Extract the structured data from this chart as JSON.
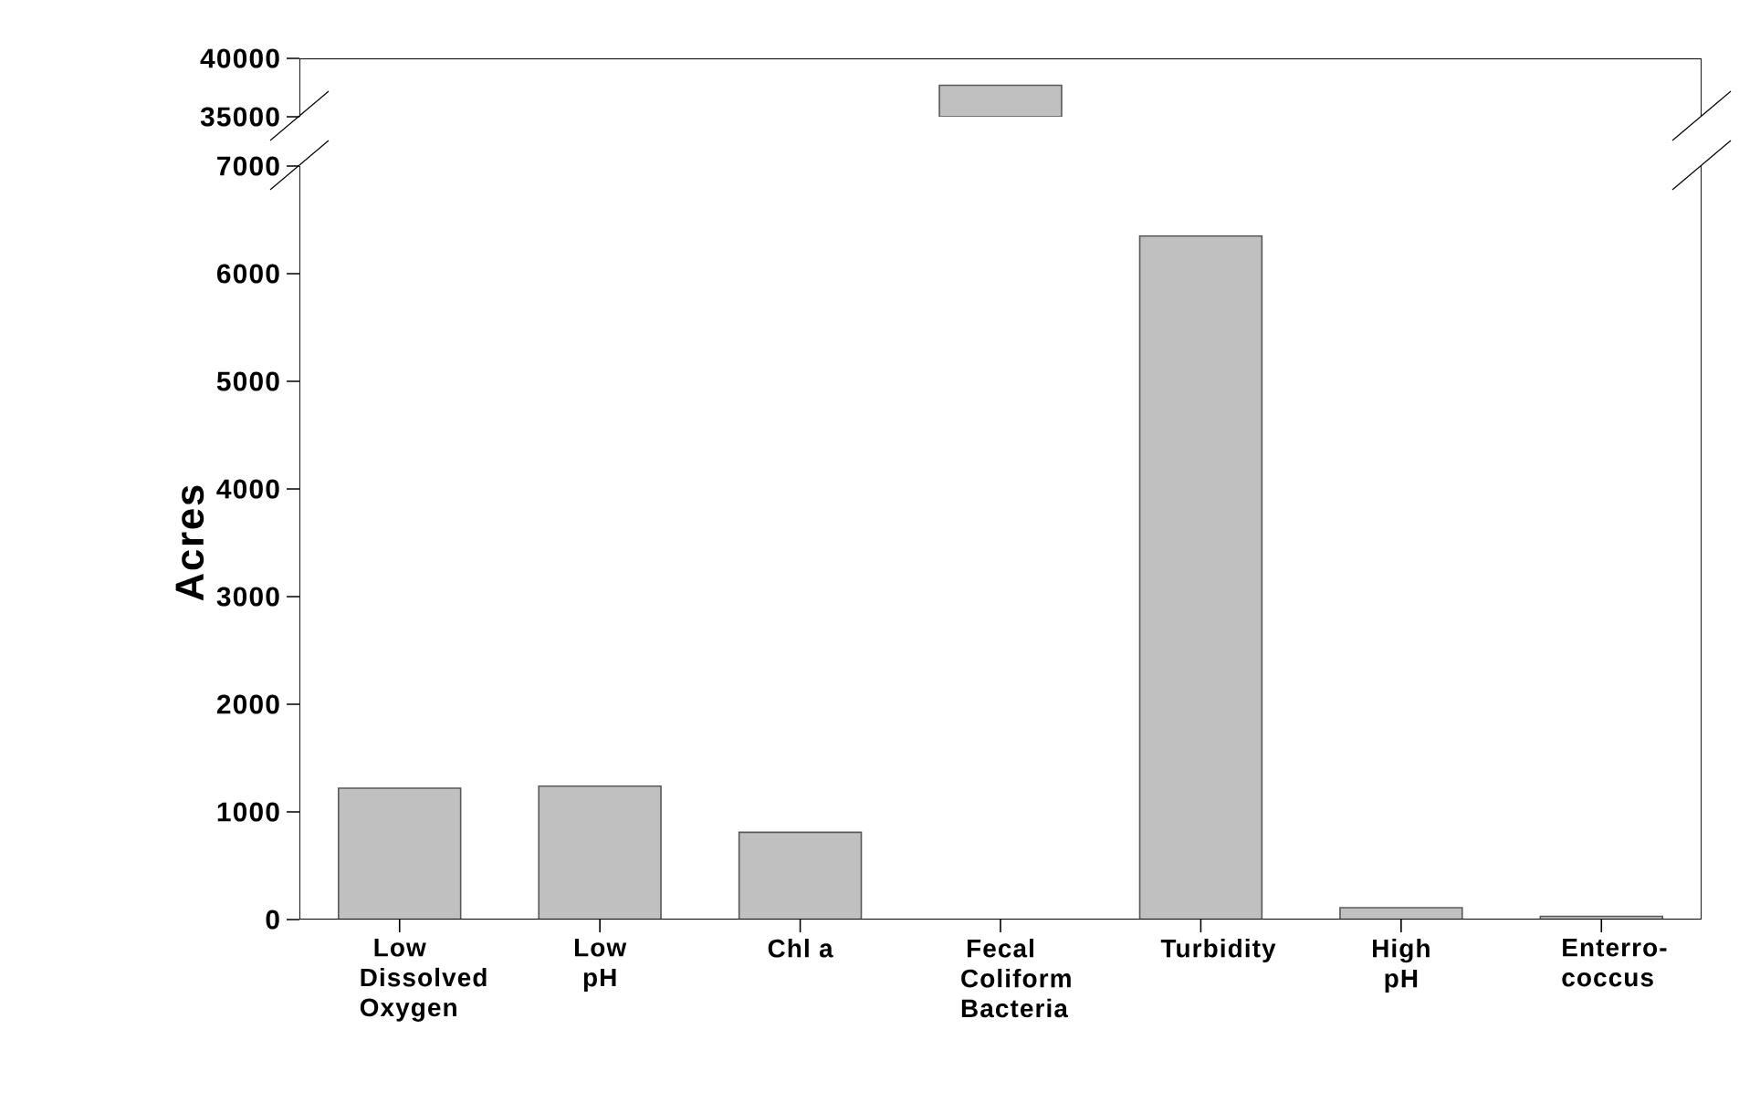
{
  "chart_data": [
    {
      "type": "bar",
      "values": [
        null,
        null,
        null,
        37700,
        null,
        null,
        null
      ],
      "color": "#c0c0c0",
      "ylim": [
        35000,
        40000
      ],
      "yticks": [
        35000,
        40000
      ],
      "tick_labels": "y"
    },
    {
      "type": "bar",
      "ylabel": "Acres",
      "categories": [
        "Low Dissolved Oxygen",
        "Low pH",
        "Chl a",
        "Fecal Coliform Bacteria",
        "Turbidity",
        "High pH",
        "Enterro-coccus"
      ],
      "values": [
        1220,
        1240,
        810,
        null,
        6350,
        110,
        30
      ],
      "color": "#c0c0c0",
      "ylim": [
        0,
        7000
      ],
      "yticks": [
        0,
        1000,
        2000,
        3000,
        4000,
        5000,
        6000,
        7000
      ]
    }
  ]
}
